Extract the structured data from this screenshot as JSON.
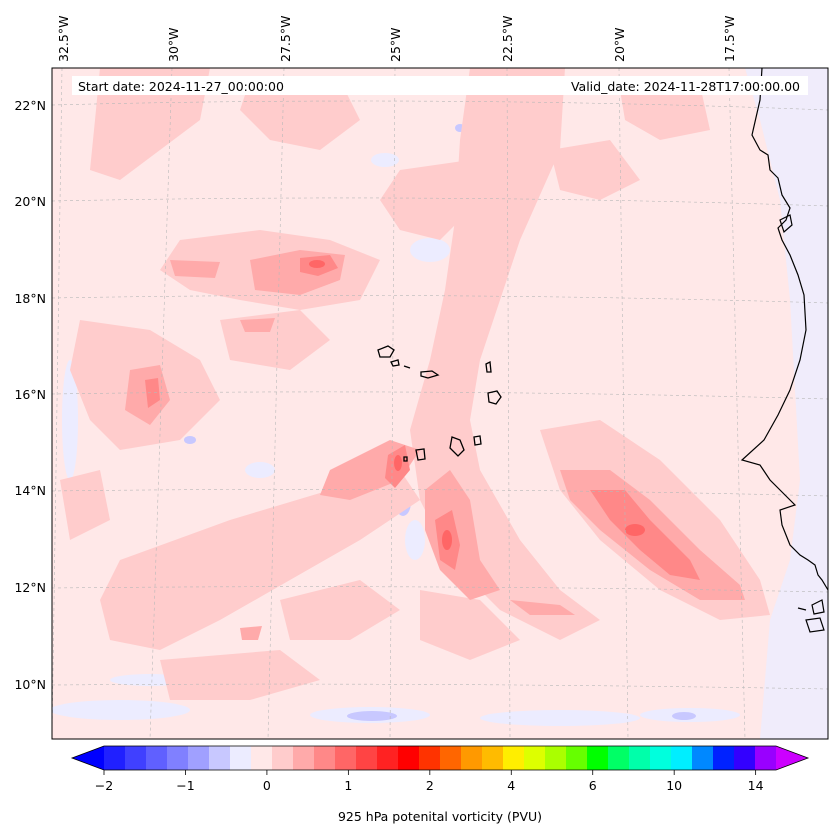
{
  "figure": {
    "start_date": "Start date: 2024-11-27_00:00:00",
    "valid_date": "Valid_date: 2024-11-28T17:00:00.00"
  },
  "map": {
    "background_color": "#ffe8e8",
    "longitude_labels": [
      "32.5°W",
      "30°W",
      "27.5°W",
      "25°W",
      "22.5°W",
      "20°W",
      "17.5°W"
    ],
    "latitude_labels": [
      "22°N",
      "20°N",
      "18°N",
      "16°N",
      "14°N",
      "12°N",
      "10°N"
    ],
    "features": [
      "cape-verde-islands",
      "west-africa-coastline"
    ]
  },
  "colorbar": {
    "label": "925 hPa potenital vorticity (PVU)",
    "tick_labels": [
      "−2",
      "−1",
      "0",
      "1",
      "2",
      "4",
      "6",
      "10",
      "14"
    ],
    "colors": [
      "#0000ff",
      "#2020ff",
      "#4040ff",
      "#6060ff",
      "#8080ff",
      "#a0a0ff",
      "#c8c8ff",
      "#ececff",
      "#ffe8e8",
      "#ffcccc",
      "#ffaaaa",
      "#ff8888",
      "#ff6666",
      "#ff4444",
      "#ff2222",
      "#ff0000",
      "#ff3300",
      "#ff6600",
      "#ff9900",
      "#ffbb00",
      "#ffee00",
      "#ddff00",
      "#aaff00",
      "#66ff00",
      "#00ff00",
      "#00ff66",
      "#00ffaa",
      "#00ffdd",
      "#00eeff",
      "#0088ff",
      "#0022ff",
      "#3300ff",
      "#9900ff",
      "#cc00ff"
    ]
  }
}
